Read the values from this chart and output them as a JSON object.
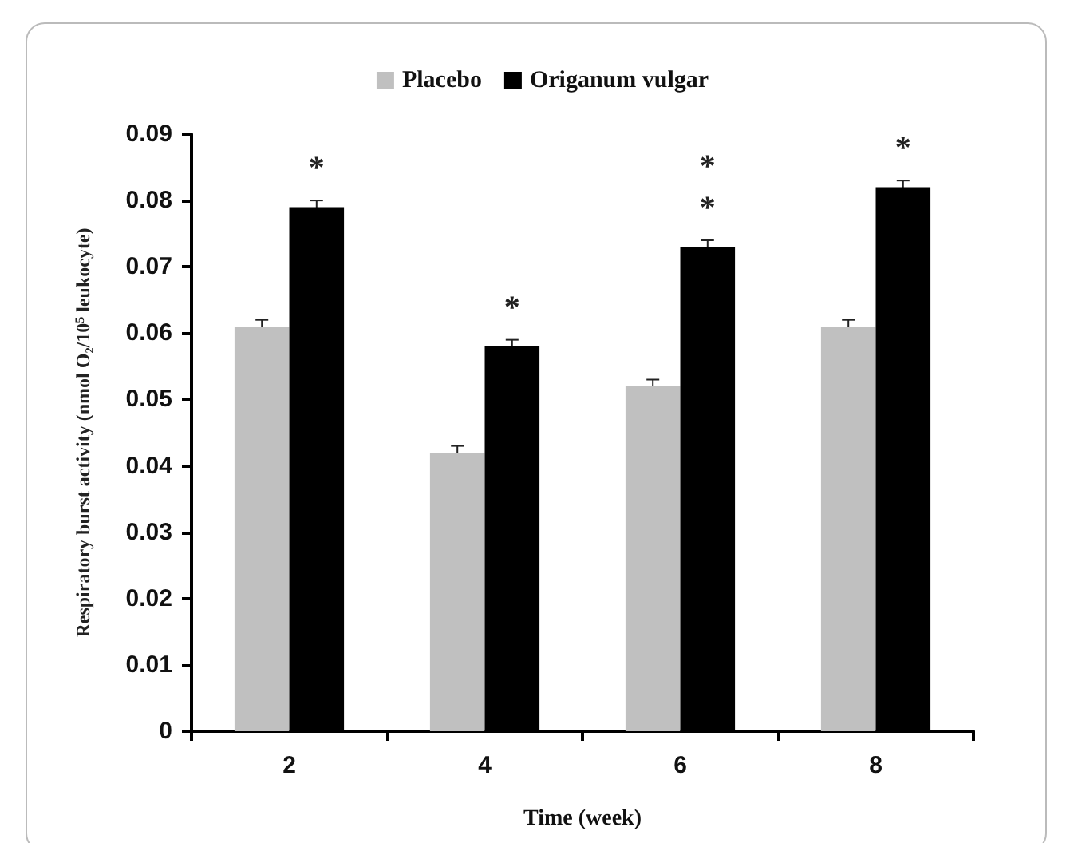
{
  "chart_data": {
    "type": "bar",
    "xlabel": "Time (week)",
    "ylabel": "Respiratory burst activity (nmol O₂/10$^{5}$ leukocyte)",
    "categories": [
      "2",
      "4",
      "6",
      "8"
    ],
    "series": [
      {
        "name": "Placebo",
        "color": "#c0c0c0",
        "values": [
          0.061,
          0.042,
          0.052,
          0.061
        ],
        "errors": [
          0.001,
          0.001,
          0.001,
          0.001
        ]
      },
      {
        "name": "Origanum vulgar",
        "color": "#000000",
        "values": [
          0.079,
          0.058,
          0.073,
          0.082
        ],
        "errors": [
          0.001,
          0.001,
          0.001,
          0.001
        ]
      }
    ],
    "annotations": [
      {
        "text": "*",
        "x": "2",
        "y": 0.079
      },
      {
        "text": "*",
        "x": "4",
        "y": 0.058
      },
      {
        "text": "*",
        "x": "6",
        "y": 0.073
      },
      {
        "text": "*",
        "x": "6",
        "y": 0.073
      },
      {
        "text": "*",
        "x": "8",
        "y": 0.082
      }
    ],
    "ylim": [
      0,
      0.09
    ],
    "yticks": [
      0,
      0.01,
      0.02,
      0.03,
      0.04,
      0.05,
      0.06,
      0.07,
      0.08,
      0.09
    ],
    "grid": false,
    "legend": "top"
  }
}
